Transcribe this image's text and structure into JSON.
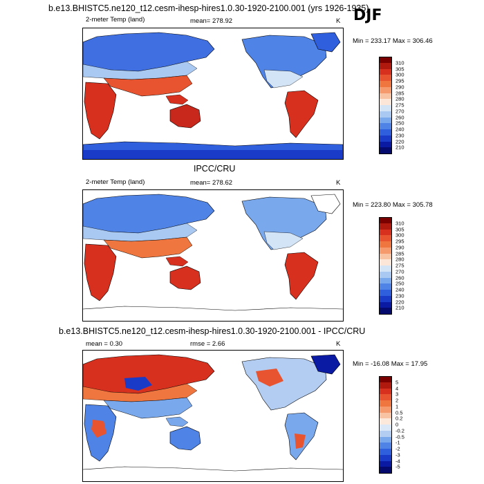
{
  "page": {
    "title": "b.e13.BHISTC5.ne120_t12.cesm-ihesp-hires1.0.30-1920-2100.001 (yrs 1926-1935)",
    "season": "DJF"
  },
  "panels": [
    {
      "heading": "",
      "variable": "2-meter Temp (land)",
      "mean_text": "mean= 278.92",
      "units": "K",
      "minmax": "Min = 233.17 Max = 306.46",
      "cbar_key": "temp"
    },
    {
      "heading": "IPCC/CRU",
      "variable": "2-meter Temp (land)",
      "mean_text": "mean= 278.62",
      "units": "K",
      "minmax": "Min = 223.80 Max = 305.78",
      "cbar_key": "temp"
    },
    {
      "heading": "b.e13.BHISTC5.ne120_t12.cesm-ihesp-hires1.0.30-1920-2100.001 - IPCC/CRU",
      "variable": "",
      "mean_text": "mean =   0.30",
      "rmse_text": "rmse =   2.66",
      "units": "K",
      "minmax": "Min = -16.08 Max =  17.95",
      "cbar_key": "diff"
    }
  ],
  "chart_data": [
    {
      "type": "heatmap",
      "title": "2-meter Temp (land)",
      "source": "b.e13.BHISTC5.ne120_t12.cesm-ihesp-hires1.0.30-1920-2100.001 (yrs 1926-1935)",
      "season": "DJF",
      "units": "K",
      "mean": 278.92,
      "min": 233.17,
      "max": 306.46,
      "colorbar_levels": [
        210,
        220,
        230,
        240,
        250,
        260,
        270,
        275,
        280,
        285,
        290,
        295,
        300,
        305,
        310
      ]
    },
    {
      "type": "heatmap",
      "title": "IPCC/CRU 2-meter Temp (land)",
      "season": "DJF",
      "units": "K",
      "mean": 278.62,
      "min": 223.8,
      "max": 305.78,
      "colorbar_levels": [
        210,
        220,
        230,
        240,
        250,
        260,
        270,
        275,
        280,
        285,
        290,
        295,
        300,
        305,
        310
      ]
    },
    {
      "type": "heatmap",
      "title": "b.e13.BHISTC5.ne120_t12.cesm-ihesp-hires1.0.30-1920-2100.001 - IPCC/CRU",
      "season": "DJF",
      "units": "K",
      "mean": 0.3,
      "rmse": 2.66,
      "min": -16.08,
      "max": 17.95,
      "colorbar_levels": [
        -5,
        -4,
        -3,
        -2,
        -1,
        -0.5,
        -0.2,
        0,
        0.2,
        0.5,
        1,
        2,
        3,
        4,
        5
      ]
    }
  ],
  "colorbars": {
    "temp": {
      "labels": [
        "310",
        "305",
        "300",
        "295",
        "290",
        "285",
        "280",
        "275",
        "270",
        "260",
        "250",
        "240",
        "230",
        "220",
        "210"
      ],
      "colors": [
        "#7a0000",
        "#b01a0e",
        "#d7301f",
        "#e8542f",
        "#f0763f",
        "#f59a6c",
        "#f8c3a3",
        "#fbe6d8",
        "#d3e4f7",
        "#a9c9f2",
        "#7aa8ec",
        "#4f83e6",
        "#2f5fdc",
        "#1a3ac8",
        "#0a1aa3",
        "#050a6e"
      ]
    },
    "diff": {
      "labels": [
        "5",
        "4",
        "3",
        "2",
        "1",
        "0.5",
        "0.2",
        "0",
        "-0.2",
        "-0.5",
        "-1",
        "-2",
        "-3",
        "-4",
        "-5"
      ],
      "colors": [
        "#7a0000",
        "#b01a0e",
        "#d7301f",
        "#e8542f",
        "#f0763f",
        "#f59a6c",
        "#f8c3a3",
        "#fde8dc",
        "#dbe8f8",
        "#b3cdf2",
        "#7aa8ec",
        "#4f83e6",
        "#2f5fdc",
        "#1a3ac8",
        "#0a1aa3",
        "#050a6e"
      ]
    }
  }
}
